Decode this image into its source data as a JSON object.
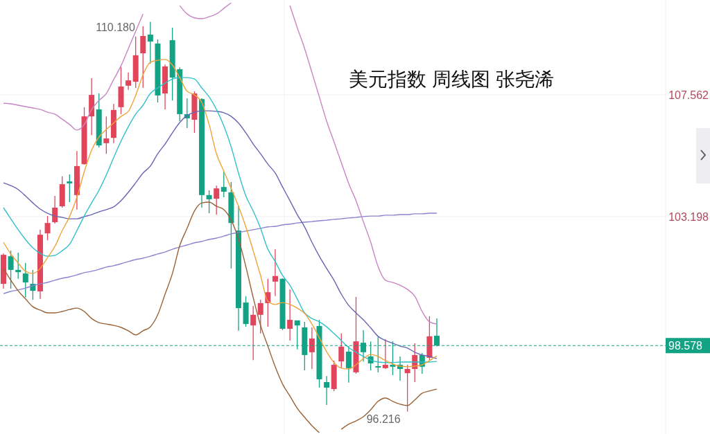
{
  "chart_data": {
    "type": "candlestick",
    "title": "美元指数 周线图 张尧浠",
    "categories": [
      null,
      null,
      null,
      null,
      null,
      null,
      null,
      null,
      null,
      null,
      null,
      null,
      null,
      null,
      null,
      null,
      null,
      null,
      null,
      null,
      null,
      null,
      null,
      null,
      null,
      null,
      null,
      null,
      null,
      null,
      null,
      null,
      null,
      null,
      null,
      null,
      null,
      null,
      null,
      null,
      null,
      null,
      null,
      null,
      null,
      null,
      null,
      null,
      null,
      null,
      null,
      null,
      null,
      null,
      null,
      null,
      null,
      null,
      null,
      null
    ],
    "ohlc": [
      [
        100.79,
        101.88,
        100.62,
        101.83
      ],
      [
        101.78,
        101.98,
        100.62,
        101.29
      ],
      [
        101.29,
        101.91,
        100.97,
        101.21
      ],
      [
        101.16,
        101.54,
        100.3,
        100.84
      ],
      [
        100.79,
        101.29,
        100.22,
        100.54
      ],
      [
        100.52,
        102.73,
        100.25,
        102.55
      ],
      [
        102.6,
        103.22,
        102.35,
        102.97
      ],
      [
        103.0,
        103.94,
        102.95,
        103.52
      ],
      [
        103.57,
        104.64,
        103.52,
        104.36
      ],
      [
        104.46,
        104.71,
        103.72,
        104.39
      ],
      [
        103.97,
        105.55,
        103.45,
        105.01
      ],
      [
        105.08,
        107.12,
        105.06,
        106.79
      ],
      [
        106.79,
        108.16,
        106.12,
        107.56
      ],
      [
        107.04,
        107.61,
        105.68,
        105.75
      ],
      [
        105.83,
        106.79,
        105.45,
        106.0
      ],
      [
        106.02,
        107.24,
        105.83,
        107.02
      ],
      [
        107.12,
        108.55,
        106.87,
        107.86
      ],
      [
        107.89,
        108.36,
        107.74,
        108.08
      ],
      [
        108.03,
        109.65,
        107.81,
        108.98
      ],
      [
        109.05,
        110.02,
        107.81,
        109.67
      ],
      [
        109.72,
        110.18,
        108.68,
        109.47
      ],
      [
        109.4,
        109.55,
        107.29,
        107.54
      ],
      [
        107.61,
        108.65,
        107.04,
        108.58
      ],
      [
        109.52,
        109.97,
        107.36,
        108.18
      ],
      [
        108.48,
        108.55,
        106.62,
        106.87
      ],
      [
        106.87,
        107.44,
        106.37,
        106.72
      ],
      [
        106.67,
        107.69,
        106.2,
        107.61
      ],
      [
        107.41,
        107.44,
        103.52,
        103.97
      ],
      [
        103.97,
        104.14,
        103.32,
        103.82
      ],
      [
        103.84,
        104.31,
        103.27,
        104.21
      ],
      [
        104.26,
        104.81,
        103.89,
        104.09
      ],
      [
        104.07,
        104.44,
        101.34,
        102.97
      ],
      [
        102.7,
        103.59,
        99.11,
        99.92
      ],
      [
        100.12,
        100.35,
        99.25,
        99.35
      ],
      [
        99.3,
        100.0,
        98.06,
        99.68
      ],
      [
        99.68,
        100.22,
        99.01,
        100.1
      ],
      [
        100.1,
        100.97,
        99.25,
        100.49
      ],
      [
        100.87,
        102.03,
        100.35,
        101.07
      ],
      [
        100.97,
        100.99,
        99.13,
        99.18
      ],
      [
        99.18,
        100.59,
        98.76,
        99.5
      ],
      [
        99.48,
        99.48,
        98.44,
        99.3
      ],
      [
        99.23,
        99.43,
        97.69,
        98.24
      ],
      [
        98.34,
        99.23,
        97.74,
        98.83
      ],
      [
        99.28,
        99.5,
        97.07,
        97.37
      ],
      [
        97.27,
        97.49,
        96.45,
        97.07
      ],
      [
        97.02,
        98.04,
        96.95,
        97.89
      ],
      [
        98.01,
        99.01,
        97.77,
        98.54
      ],
      [
        98.36,
        98.56,
        97.25,
        97.77
      ],
      [
        97.62,
        100.32,
        97.57,
        98.73
      ],
      [
        98.68,
        99.13,
        98.01,
        98.34
      ],
      [
        98.19,
        98.73,
        97.69,
        97.94
      ],
      [
        97.84,
        98.88,
        97.62,
        97.79
      ],
      [
        97.77,
        98.81,
        97.74,
        97.89
      ],
      [
        97.89,
        98.73,
        97.52,
        97.82
      ],
      [
        97.89,
        98.19,
        97.32,
        97.74
      ],
      [
        97.59,
        97.89,
        96.216,
        97.74
      ],
      [
        97.74,
        98.66,
        97.27,
        98.24
      ],
      [
        98.24,
        98.31,
        97.57,
        97.82
      ],
      [
        98.14,
        99.63,
        98.06,
        98.91
      ],
      [
        98.93,
        99.55,
        98.55,
        98.578
      ]
    ],
    "colors": [
      "#e0455b",
      "#14a285",
      "#14a285",
      "#14a285",
      "#14a285",
      "#e0455b",
      "#e0455b",
      "#e0455b",
      "#e0455b",
      "#14a285",
      "#e0455b",
      "#e0455b",
      "#e0455b",
      "#14a285",
      "#e0455b",
      "#e0455b",
      "#e0455b",
      "#e0455b",
      "#e0455b",
      "#e0455b",
      "#14a285",
      "#14a285",
      "#e0455b",
      "#14a285",
      "#14a285",
      "#14a285",
      "#e0455b",
      "#14a285",
      "#14a285",
      "#e0455b",
      "#14a285",
      "#14a285",
      "#14a285",
      "#14a285",
      "#e0455b",
      "#e0455b",
      "#e0455b",
      "#e0455b",
      "#14a285",
      "#e0455b",
      "#14a285",
      "#14a285",
      "#e0455b",
      "#14a285",
      "#14a285",
      "#e0455b",
      "#e0455b",
      "#14a285",
      "#e0455b",
      "#14a285",
      "#14a285",
      "#14a285",
      "#e0455b",
      "#14a285",
      "#14a285",
      "#e0455b",
      "#e0455b",
      "#14a285",
      "#e0455b",
      "#14a285"
    ],
    "series": [
      {
        "type": "line",
        "color": "#8a84d0",
        "values": [
          100.44,
          100.52,
          100.57,
          100.64,
          100.72,
          100.79,
          100.84,
          100.92,
          100.99,
          101.04,
          101.11,
          101.19,
          101.24,
          101.31,
          101.39,
          101.44,
          101.51,
          101.59,
          101.66,
          101.71,
          101.78,
          101.86,
          101.93,
          102.03,
          102.11,
          102.18,
          102.26,
          102.31,
          102.38,
          102.43,
          102.5,
          102.58,
          102.63,
          102.68,
          102.73,
          102.78,
          102.83,
          102.85,
          102.9,
          102.93,
          102.97,
          103.0,
          103.02,
          103.05,
          103.07,
          103.1,
          103.12,
          103.15,
          103.17,
          103.2,
          103.22,
          103.22,
          103.25,
          103.25,
          103.27,
          103.27,
          103.3,
          103.3,
          103.32,
          103.32
        ]
      },
      {
        "type": "line",
        "color": "#c884c4",
        "values": [
          107.26,
          107.24,
          107.19,
          107.14,
          107.09,
          107.04,
          106.94,
          106.87,
          106.69,
          106.5,
          106.3,
          106.5,
          107.04,
          107.36,
          107.61,
          108.11,
          108.6,
          109.22,
          109.84,
          110.46,
          null,
          null,
          null,
          null,
          110.76,
          110.46,
          110.32,
          110.29,
          110.36,
          110.46,
          110.66,
          110.86,
          null,
          null,
          null,
          null,
          null,
          null,
          null,
          110.76,
          109.97,
          109.22,
          108.36,
          107.49,
          106.62,
          105.88,
          105.13,
          104.39,
          103.77,
          103.02,
          102.28,
          101.41,
          100.92,
          100.84,
          100.74,
          100.59,
          100.35,
          99.8,
          99.43,
          99.35
        ]
      },
      {
        "type": "line",
        "color": "#9a6234",
        "values": [
          101.34,
          100.92,
          100.54,
          100.25,
          99.97,
          99.85,
          99.75,
          99.75,
          99.8,
          99.87,
          99.92,
          99.8,
          99.55,
          99.4,
          99.35,
          99.3,
          99.23,
          99.11,
          98.96,
          99.11,
          99.25,
          99.68,
          100.42,
          101.16,
          102.16,
          102.78,
          103.4,
          103.69,
          103.72,
          103.57,
          103.45,
          103.07,
          102.4,
          101.41,
          100.3,
          99.3,
          98.56,
          97.82,
          97.2,
          96.77,
          96.33,
          96.01,
          95.71,
          95.46,
          null,
          null,
          95.58,
          95.76,
          95.88,
          96.03,
          96.28,
          96.58,
          96.7,
          96.58,
          96.48,
          96.43,
          96.63,
          96.87,
          96.95,
          97.02
        ]
      },
      {
        "type": "line",
        "color": "#6664b4",
        "values": [
          104.41,
          104.31,
          104.17,
          103.94,
          103.69,
          103.47,
          103.32,
          103.22,
          103.17,
          103.12,
          103.12,
          103.2,
          103.27,
          103.37,
          103.45,
          103.55,
          103.77,
          104.07,
          104.41,
          104.76,
          105.01,
          105.45,
          105.8,
          106.2,
          106.57,
          106.82,
          106.94,
          106.99,
          106.99,
          106.97,
          106.92,
          106.79,
          106.55,
          106.2,
          105.8,
          105.45,
          105.08,
          104.76,
          104.26,
          103.77,
          103.27,
          102.83,
          102.28,
          101.78,
          101.34,
          100.92,
          100.42,
          100.02,
          99.75,
          99.5,
          99.21,
          98.91,
          98.76,
          98.66,
          98.56,
          98.49,
          98.34,
          98.24,
          98.19,
          98.11
        ]
      },
      {
        "type": "line",
        "color": "#30c0c8",
        "values": [
          103.52,
          103.12,
          102.73,
          102.38,
          102.08,
          101.88,
          101.78,
          101.81,
          101.98,
          102.21,
          102.7,
          103.22,
          103.69,
          104.14,
          104.69,
          105.31,
          105.9,
          106.42,
          106.87,
          107.19,
          107.61,
          107.81,
          107.98,
          108.13,
          108.18,
          108.18,
          108.13,
          107.81,
          107.49,
          107.04,
          106.45,
          105.7,
          104.76,
          103.94,
          103.4,
          102.78,
          102.03,
          101.59,
          101.09,
          100.74,
          100.25,
          99.75,
          99.55,
          99.43,
          99.25,
          99.01,
          98.76,
          98.51,
          98.34,
          98.19,
          98.06,
          97.99,
          97.97,
          97.97,
          97.99,
          97.99,
          97.99,
          97.99,
          97.99,
          98.01
        ]
      },
      {
        "type": "line",
        "color": "#f0a23a",
        "values": [
          102.28,
          101.86,
          101.54,
          101.24,
          101.16,
          101.34,
          101.73,
          102.13,
          102.7,
          103.2,
          103.89,
          104.81,
          105.58,
          106.05,
          106.32,
          106.55,
          106.79,
          106.97,
          107.54,
          108.28,
          108.73,
          108.8,
          108.83,
          108.63,
          108.18,
          107.69,
          107.56,
          107.29,
          106.5,
          105.45,
          104.83,
          104.21,
          103.57,
          102.83,
          101.98,
          101.09,
          100.17,
          100.05,
          100.12,
          100.05,
          99.92,
          99.73,
          99.35,
          98.86,
          98.36,
          97.97,
          97.77,
          97.74,
          97.89,
          98.11,
          98.26,
          98.19,
          98.04,
          97.92,
          97.84,
          97.82,
          97.84,
          97.89,
          98.04,
          98.21
        ]
      }
    ],
    "ylim": [
      95.41,
      110.96
    ],
    "yticks": [
      107.562,
      103.198
    ],
    "grid": "y",
    "tick_labels": "y",
    "ref_lines": [
      {
        "axis": "y",
        "value": 98.578,
        "label": "98.578",
        "color": "#14a285",
        "line_style": "dashed"
      }
    ],
    "annotations": [
      "110.180",
      "96.216"
    ]
  }
}
